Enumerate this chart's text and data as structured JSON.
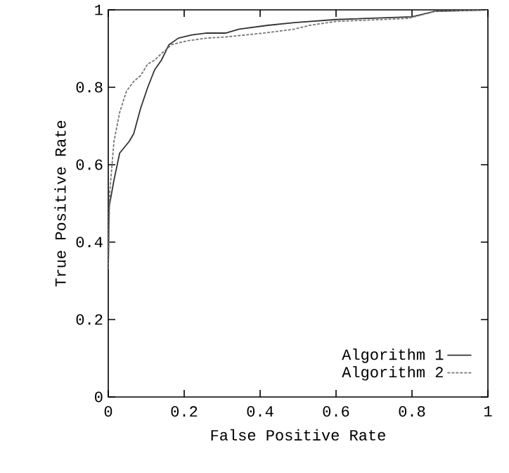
{
  "chart_data": {
    "type": "line",
    "xlabel": "False Positive Rate",
    "ylabel": "True Positive Rate",
    "xlim": [
      0,
      1
    ],
    "ylim": [
      0,
      1
    ],
    "xticks": [
      0,
      0.2,
      0.4,
      0.6,
      0.8,
      1
    ],
    "yticks": [
      0,
      0.2,
      0.4,
      0.6,
      0.8,
      1
    ],
    "legend": "bottom right",
    "grid": false,
    "marker": "none",
    "series": [
      {
        "name": "Algorithm 1",
        "color": "#333333",
        "line_style": "solid",
        "x": [
          0,
          0.002,
          0.015,
          0.03,
          0.055,
          0.067,
          0.085,
          0.104,
          0.122,
          0.14,
          0.16,
          0.185,
          0.22,
          0.26,
          0.31,
          0.345,
          0.42,
          0.49,
          0.6,
          0.8,
          0.86,
          1
        ],
        "values": [
          0.33,
          0.49,
          0.56,
          0.63,
          0.66,
          0.68,
          0.745,
          0.8,
          0.845,
          0.87,
          0.91,
          0.927,
          0.935,
          0.94,
          0.94,
          0.95,
          0.96,
          0.967,
          0.975,
          0.982,
          0.996,
          1
        ]
      },
      {
        "name": "Algorithm 2",
        "color": "#777777",
        "line_style": "dashed",
        "x": [
          0,
          0.004,
          0.015,
          0.03,
          0.048,
          0.067,
          0.085,
          0.104,
          0.122,
          0.14,
          0.167,
          0.207,
          0.26,
          0.31,
          0.41,
          0.49,
          0.53,
          0.6,
          0.79,
          0.86,
          1
        ],
        "values": [
          0.33,
          0.53,
          0.66,
          0.735,
          0.79,
          0.815,
          0.83,
          0.86,
          0.87,
          0.887,
          0.91,
          0.92,
          0.927,
          0.93,
          0.94,
          0.95,
          0.96,
          0.97,
          0.978,
          0.996,
          1
        ]
      }
    ]
  }
}
